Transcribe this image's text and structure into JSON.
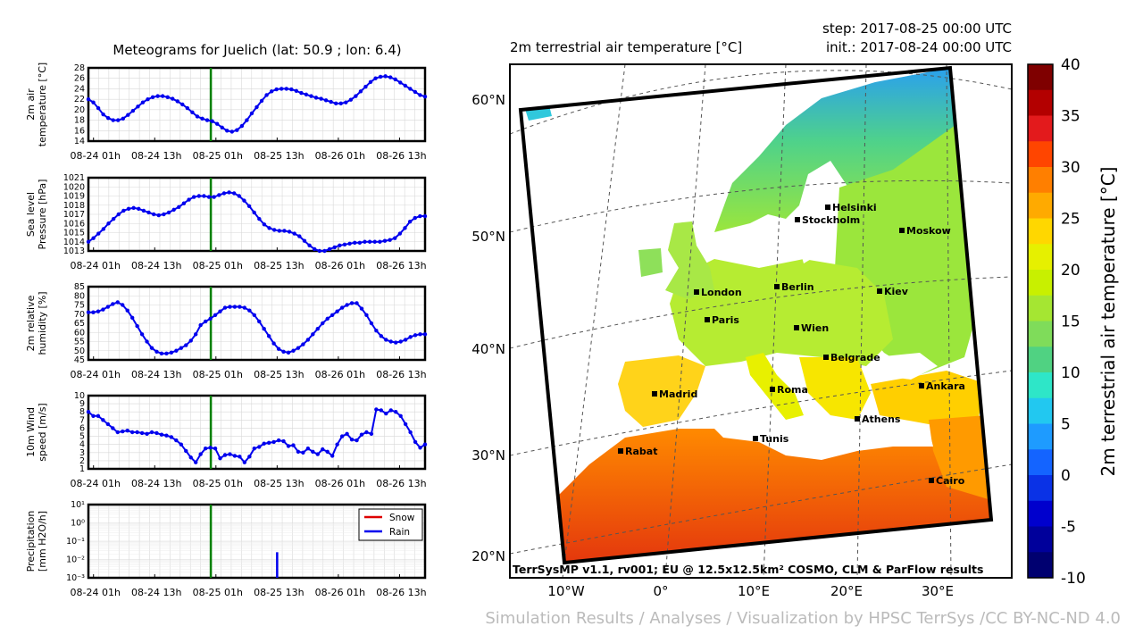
{
  "meteogram_title": "Meteograms for Juelich (lat: 50.9 ; lon: 6.4)",
  "x_ticks": [
    "08-24 01h",
    "08-24 13h",
    "08-25 01h",
    "08-25 13h",
    "08-26 01h",
    "08-26 13h"
  ],
  "marker_color": "#0000ee",
  "now_line_color": "#008000",
  "map": {
    "title": "2m terrestrial air temperature [°C]",
    "step": "step: 2017-08-25 00:00 UTC",
    "init": "init.: 2017-08-24 00:00 UTC",
    "lat_labels": [
      "60°N",
      "50°N",
      "40°N",
      "30°N",
      "20°N"
    ],
    "lon_labels": [
      "10°W",
      "0°",
      "10°E",
      "20°E",
      "30°E"
    ],
    "cities": [
      {
        "name": "Helsinki"
      },
      {
        "name": "Stockholm"
      },
      {
        "name": "Moskow"
      },
      {
        "name": "London"
      },
      {
        "name": "Berlin"
      },
      {
        "name": "Kiev"
      },
      {
        "name": "Paris"
      },
      {
        "name": "Wien"
      },
      {
        "name": "Belgrade"
      },
      {
        "name": "Madrid"
      },
      {
        "name": "Roma"
      },
      {
        "name": "Ankara"
      },
      {
        "name": "Athens"
      },
      {
        "name": "Tunis"
      },
      {
        "name": "Rabat"
      },
      {
        "name": "Cairo"
      }
    ],
    "credit": "TerrSysMP v1.1, rv001; EU @ 12.5x12.5km² COSMO, CLM & ParFlow results"
  },
  "colorbar": {
    "label": "2m terrestrial air temperature [°C]",
    "ticks": [
      "40",
      "35",
      "30",
      "25",
      "20",
      "15",
      "10",
      "5",
      "0",
      "-5",
      "-10"
    ],
    "colors": [
      "#7f0000",
      "#b30000",
      "#e31a1c",
      "#ff4500",
      "#ff7f00",
      "#ffaa00",
      "#ffd700",
      "#e6f000",
      "#c8f000",
      "#a5e632",
      "#7fdc5a",
      "#50d282",
      "#2ee6c8",
      "#22c8f0",
      "#1e9bff",
      "#1464ff",
      "#0a32e6",
      "#0000cd",
      "#00009b",
      "#000070"
    ]
  },
  "attribution": "Simulation Results / Analyses / Visualization by HPSC TerrSys /CC BY-NC-ND 4.0",
  "chart_data": [
    {
      "type": "line",
      "ylabel": "2m air\ntemperature [°C]",
      "yticks": [
        "14",
        "16",
        "18",
        "20",
        "22",
        "24",
        "26",
        "28"
      ],
      "ylim": [
        14,
        28
      ],
      "x_start": "2017-08-24 00:00 UTC",
      "x_end": "2017-08-26 18:00 UTC",
      "now": "2017-08-25 00:00 UTC",
      "series": [
        {
          "values": [
            22,
            21.4,
            20.3,
            19.1,
            18.4,
            18,
            18,
            18.3,
            19,
            19.8,
            20.6,
            21.4,
            22,
            22.4,
            22.6,
            22.6,
            22.4,
            22.1,
            21.6,
            21,
            20.3,
            19.5,
            18.7,
            18.3,
            18,
            17.8,
            17.3,
            16.6,
            16,
            15.8,
            16.1,
            16.9,
            18,
            19.3,
            20.5,
            21.7,
            22.8,
            23.5,
            23.9,
            24,
            24,
            23.9,
            23.6,
            23.2,
            22.9,
            22.6,
            22.3,
            22.1,
            21.8,
            21.5,
            21.2,
            21.2,
            21.4,
            21.9,
            22.6,
            23.5,
            24.4,
            25.3,
            26,
            26.3,
            26.4,
            26.2,
            25.8,
            25.2,
            24.6,
            24,
            23.4,
            22.8,
            22.5
          ]
        }
      ]
    },
    {
      "type": "line",
      "ylabel": "Sea level\nPressure [hPa]",
      "yticks": [
        "1013",
        "1014",
        "1015",
        "1016",
        "1017",
        "1018",
        "1019",
        "1020",
        "1021"
      ],
      "ylim": [
        1013,
        1021
      ],
      "x_start": "2017-08-24 00:00 UTC",
      "x_end": "2017-08-26 18:00 UTC",
      "now": "2017-08-25 00:00 UTC",
      "series": [
        {
          "values": [
            1014,
            1014.4,
            1014.9,
            1015.4,
            1016,
            1016.5,
            1017,
            1017.4,
            1017.6,
            1017.7,
            1017.6,
            1017.4,
            1017.2,
            1017,
            1016.9,
            1017,
            1017.2,
            1017.5,
            1017.8,
            1018.2,
            1018.6,
            1018.9,
            1019,
            1019,
            1018.9,
            1018.9,
            1019.1,
            1019.3,
            1019.4,
            1019.3,
            1019,
            1018.5,
            1017.9,
            1017.2,
            1016.5,
            1015.9,
            1015.5,
            1015.3,
            1015.2,
            1015.2,
            1015.1,
            1014.9,
            1014.6,
            1014.1,
            1013.6,
            1013.2,
            1013,
            1013,
            1013.2,
            1013.4,
            1013.6,
            1013.7,
            1013.8,
            1013.9,
            1013.9,
            1014,
            1014,
            1014,
            1014,
            1014.1,
            1014.2,
            1014.4,
            1014.9,
            1015.5,
            1016.2,
            1016.6,
            1016.8,
            1016.8
          ]
        }
      ]
    },
    {
      "type": "line",
      "ylabel": "2m relative\nhumidity [%]",
      "yticks": [
        "45",
        "50",
        "55",
        "60",
        "65",
        "70",
        "75",
        "80",
        "85"
      ],
      "ylim": [
        45,
        85
      ],
      "x_start": "2017-08-24 00:00 UTC",
      "x_end": "2017-08-26 18:00 UTC",
      "now": "2017-08-25 00:00 UTC",
      "series": [
        {
          "values": [
            71,
            71,
            71.5,
            72.5,
            74,
            75.5,
            76.5,
            75,
            72,
            68,
            63.5,
            59,
            55,
            51.5,
            49.5,
            48.5,
            48.5,
            49,
            50,
            51.5,
            53,
            55.5,
            59,
            64,
            66,
            67.5,
            69.5,
            71.5,
            73.5,
            74,
            74,
            74,
            73.5,
            72,
            69.5,
            66,
            62,
            58,
            54,
            51,
            49.5,
            49,
            50,
            51.5,
            53.5,
            56,
            59,
            62,
            65,
            67.5,
            69.5,
            71.5,
            73.5,
            75,
            76,
            76,
            73,
            69.5,
            65,
            61,
            58,
            56,
            55,
            54.5,
            55,
            56,
            57.5,
            58.5,
            59,
            59
          ]
        }
      ]
    },
    {
      "type": "line",
      "ylabel": "10m Wind\nspeed [m/s]",
      "yticks": [
        "1",
        "2",
        "3",
        "4",
        "5",
        "6",
        "7",
        "8",
        "9",
        "10"
      ],
      "ylim": [
        1,
        10
      ],
      "x_start": "2017-08-24 00:00 UTC",
      "x_end": "2017-08-26 18:00 UTC",
      "now": "2017-08-25 00:00 UTC",
      "series": [
        {
          "values": [
            8,
            7.5,
            7.5,
            7,
            6.5,
            6,
            5.5,
            5.6,
            5.7,
            5.5,
            5.5,
            5.4,
            5.3,
            5.5,
            5.4,
            5.2,
            5.1,
            4.9,
            4.5,
            4,
            3.2,
            2.4,
            1.8,
            2.8,
            3.5,
            3.6,
            3.5,
            2.3,
            2.7,
            2.8,
            2.6,
            2.5,
            1.8,
            2.5,
            3.5,
            3.7,
            4.1,
            4.2,
            4.3,
            4.5,
            4.4,
            3.8,
            3.9,
            3.1,
            3,
            3.5,
            3.1,
            2.8,
            3.4,
            3.1,
            2.6,
            4,
            5,
            5.3,
            4.6,
            4.5,
            5.2,
            5.5,
            5.3,
            8.3,
            8.2,
            7.8,
            8.2,
            8,
            7.5,
            6.5,
            5.5,
            4.3,
            3.6,
            4
          ]
        }
      ]
    },
    {
      "type": "bar",
      "ylabel": "Precipitation\n[mm H2O/h]",
      "yscale": "log",
      "yticks": [
        "10⁻³",
        "10⁻²",
        "10⁻¹",
        "10⁰",
        "10¹"
      ],
      "ylim": [
        0.001,
        10
      ],
      "x_start": "2017-08-24 00:00 UTC",
      "x_end": "2017-08-26 18:00 UTC",
      "now": "2017-08-25 00:00 UTC",
      "legend": [
        {
          "name": "Snow",
          "color": "#dd0000"
        },
        {
          "name": "Rain",
          "color": "#0000ee"
        }
      ],
      "legend_position": "top-right",
      "series": [
        {
          "name": "Snow",
          "values": []
        },
        {
          "name": "Rain",
          "points": [
            {
              "x": "2017-08-25 13:00 UTC",
              "y": 0.025
            }
          ]
        }
      ]
    }
  ]
}
